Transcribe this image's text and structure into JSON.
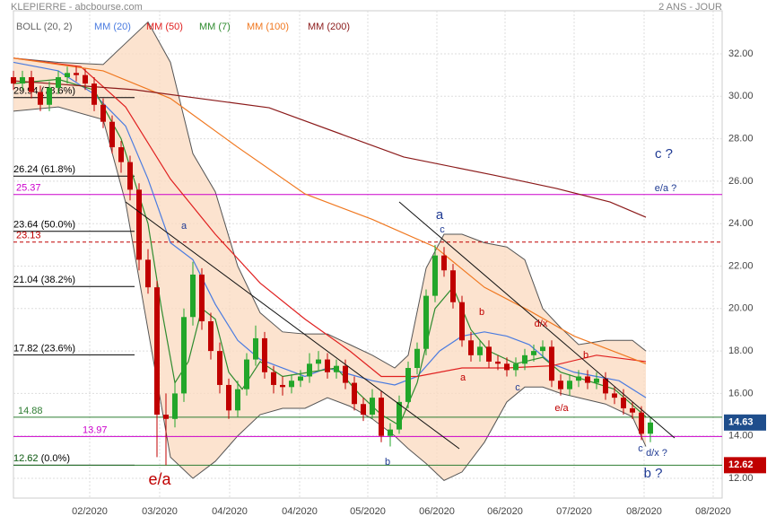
{
  "chart_data": {
    "type": "candlestick",
    "title": "KLEPIERRE - abcbourse.com",
    "subtitle": "2 ANS - JOUR",
    "up_color": "#22a62a",
    "down_color": "#c00000",
    "grid": true,
    "xlim": [
      0,
      158
    ],
    "ylim": [
      11.07,
      34.03
    ],
    "xticks": [
      {
        "value": 17,
        "label": "02/2020"
      },
      {
        "value": 32.6,
        "label": "03/2020"
      },
      {
        "value": 48.2,
        "label": "04/2020"
      },
      {
        "value": 63.8,
        "label": "04/2020"
      },
      {
        "value": 79,
        "label": "05/2020"
      },
      {
        "value": 94.4,
        "label": "06/2020"
      },
      {
        "value": 109.6,
        "label": "06/2020"
      },
      {
        "value": 125,
        "label": "07/2020"
      },
      {
        "value": 140.6,
        "label": "08/2020"
      },
      {
        "value": 156,
        "label": "08/2020"
      }
    ],
    "yticks": [
      {
        "value": 12,
        "label": "12.00"
      },
      {
        "value": 14,
        "label": "14.00"
      },
      {
        "value": 16,
        "label": "16.00"
      },
      {
        "value": 18,
        "label": "18.00"
      },
      {
        "value": 20,
        "label": "20.00"
      },
      {
        "value": 22,
        "label": "22.00"
      },
      {
        "value": 24,
        "label": "24.00"
      },
      {
        "value": 26,
        "label": "26.00"
      },
      {
        "value": 28,
        "label": "28.00"
      },
      {
        "value": 30,
        "label": "30.00"
      },
      {
        "value": 32,
        "label": "32.00"
      }
    ],
    "x": [
      0,
      2,
      4,
      6,
      8,
      10,
      12,
      14,
      16,
      18,
      20,
      22,
      24,
      26,
      28,
      30,
      32,
      34,
      36,
      38,
      40,
      42,
      44,
      46,
      48,
      50,
      52,
      54,
      56,
      58,
      60,
      62,
      64,
      66,
      68,
      70,
      72,
      74,
      76,
      78,
      80,
      82,
      84,
      86,
      88,
      90,
      92,
      94,
      96,
      98,
      100,
      102,
      104,
      106,
      108,
      110,
      112,
      114,
      116,
      118,
      120,
      122,
      124,
      126,
      128,
      130,
      132,
      134,
      136,
      138,
      140,
      142
    ],
    "open": [
      30.9,
      30.6,
      30.9,
      30.2,
      29.6,
      30.4,
      30.9,
      31.1,
      31.0,
      30.6,
      29.6,
      28.8,
      27.6,
      26.9,
      25.6,
      22.3,
      21.0,
      15.0,
      14.8,
      16.0,
      19.6,
      21.6,
      19.4,
      18.0,
      16.4,
      15.2,
      16.2,
      17.6,
      18.6,
      17.0,
      16.4,
      16.3,
      16.6,
      16.8,
      17.4,
      17.6,
      17.0,
      17.3,
      16.5,
      15.5,
      15.0,
      15.8,
      14.0,
      14.3,
      15.6,
      17.2,
      18.1,
      20.6,
      22.5,
      21.8,
      20.3,
      18.5,
      17.8,
      18.2,
      17.5,
      17.4,
      17.1,
      17.4,
      17.8,
      18.0,
      18.2,
      16.6,
      16.2,
      16.6,
      16.8,
      16.5,
      16.7,
      16.0,
      15.8,
      15.3,
      15.1,
      14.1
    ],
    "high": [
      31.2,
      31.2,
      31.2,
      30.5,
      30.7,
      31.2,
      31.4,
      31.4,
      31.3,
      30.9,
      29.9,
      29.1,
      27.9,
      27.2,
      25.9,
      22.8,
      21.3,
      16.0,
      16.5,
      20.0,
      22.2,
      21.9,
      19.8,
      18.4,
      16.7,
      16.6,
      17.9,
      19.2,
      18.9,
      17.3,
      16.8,
      16.9,
      17.1,
      17.9,
      18.0,
      17.9,
      17.6,
      17.6,
      16.8,
      15.8,
      16.2,
      16.1,
      14.6,
      15.9,
      17.5,
      18.4,
      20.9,
      23.0,
      22.9,
      22.1,
      20.6,
      18.9,
      18.5,
      18.5,
      17.8,
      17.7,
      17.7,
      18.1,
      18.3,
      18.5,
      18.5,
      16.9,
      16.9,
      17.1,
      17.1,
      17.0,
      17.0,
      16.3,
      16.2,
      15.6,
      15.4,
      14.9
    ],
    "low": [
      30.3,
      30.3,
      29.9,
      29.3,
      29.3,
      30.1,
      30.6,
      30.7,
      30.3,
      29.3,
      28.5,
      27.3,
      26.4,
      25.1,
      21.8,
      20.7,
      13.0,
      12.62,
      14.4,
      15.6,
      19.2,
      19.0,
      17.6,
      16.0,
      14.8,
      14.9,
      15.9,
      17.3,
      16.7,
      16.0,
      15.9,
      16.0,
      16.3,
      16.5,
      17.1,
      16.7,
      16.7,
      16.2,
      15.2,
      14.7,
      14.8,
      13.7,
      13.5,
      14.1,
      15.3,
      16.9,
      17.8,
      20.3,
      21.5,
      20.0,
      18.2,
      17.5,
      17.5,
      17.2,
      17.1,
      16.8,
      16.8,
      17.1,
      17.5,
      17.7,
      16.3,
      15.9,
      15.9,
      16.3,
      16.2,
      16.2,
      15.7,
      15.5,
      15.0,
      14.8,
      13.8,
      13.7
    ],
    "close": [
      30.6,
      30.9,
      30.2,
      29.6,
      30.4,
      30.9,
      31.1,
      31.0,
      30.6,
      29.6,
      28.8,
      27.6,
      26.9,
      25.6,
      22.3,
      21.0,
      15.0,
      14.8,
      16.0,
      19.6,
      21.6,
      19.4,
      18.0,
      16.4,
      15.2,
      16.2,
      17.6,
      18.6,
      17.0,
      16.4,
      16.3,
      16.6,
      16.8,
      17.4,
      17.6,
      17.0,
      17.3,
      16.5,
      15.5,
      15.0,
      15.8,
      14.0,
      14.3,
      15.6,
      17.2,
      18.1,
      20.6,
      22.5,
      21.8,
      20.3,
      18.5,
      17.8,
      18.2,
      17.5,
      17.4,
      17.1,
      17.4,
      17.8,
      18.0,
      18.2,
      16.6,
      16.2,
      16.6,
      16.8,
      16.5,
      16.7,
      16.0,
      15.8,
      15.3,
      15.1,
      14.1,
      14.63
    ],
    "bands": {
      "name": "BOLL (20, 2)",
      "color": "#555555",
      "fill": "#fbd9bf",
      "x": [
        0,
        10,
        20,
        25,
        30,
        35,
        40,
        45,
        50,
        55,
        60,
        65,
        70,
        75,
        80,
        85,
        88,
        92,
        96,
        100,
        105,
        110,
        114,
        118,
        122,
        126,
        132,
        138,
        141
      ],
      "upper": [
        31.8,
        31.6,
        31.5,
        32.5,
        33.5,
        31.6,
        27.3,
        25.5,
        22.0,
        19.8,
        18.9,
        18.8,
        18.8,
        18.3,
        17.8,
        17.2,
        17.8,
        21.9,
        23.5,
        23.5,
        23.1,
        22.9,
        22.3,
        20.0,
        19.1,
        18.3,
        18.5,
        18.5,
        18.0
      ],
      "lower": [
        29.3,
        29.5,
        28.9,
        25.0,
        19.0,
        13.0,
        12.0,
        12.8,
        14.0,
        15.0,
        15.3,
        15.3,
        15.8,
        15.4,
        14.8,
        14.0,
        13.4,
        12.7,
        11.9,
        12.3,
        13.7,
        15.6,
        16.3,
        16.3,
        16.0,
        15.8,
        15.5,
        14.9,
        13.5
      ]
    },
    "series": [
      {
        "name": "MM (20)",
        "color": "#4a7be0",
        "x": [
          0,
          10,
          18,
          25,
          30,
          35,
          40,
          45,
          50,
          55,
          60,
          65,
          70,
          75,
          80,
          85,
          90,
          95,
          100,
          105,
          110,
          115,
          120,
          125,
          130,
          135,
          141
        ],
        "values": [
          31.6,
          31.2,
          30.1,
          28.6,
          26.1,
          23.1,
          22.3,
          20.2,
          18.5,
          17.6,
          17.2,
          16.8,
          17.2,
          16.9,
          16.6,
          16.4,
          16.8,
          18.0,
          18.7,
          18.9,
          18.7,
          18.3,
          17.4,
          17.0,
          16.8,
          16.6,
          15.8
        ]
      },
      {
        "name": "MM (50)",
        "color": "#e02020",
        "x": [
          0,
          15,
          25,
          35,
          45,
          55,
          65,
          75,
          82,
          90,
          100,
          110,
          120,
          130,
          141
        ],
        "values": [
          31.8,
          31.4,
          29.5,
          26.1,
          23.5,
          21.2,
          19.5,
          18.0,
          16.8,
          16.8,
          17.2,
          17.2,
          17.3,
          17.8,
          17.5
        ]
      },
      {
        "name": "MM (7)",
        "color": "#2e8b2e",
        "x": [
          0,
          10,
          18,
          24,
          30,
          33,
          36,
          39,
          42,
          45,
          48,
          51,
          55,
          60,
          66,
          72,
          77,
          82,
          86,
          90,
          94,
          98,
          102,
          106,
          112,
          118,
          122,
          128,
          134,
          141
        ],
        "values": [
          30.6,
          30.8,
          30.3,
          28.0,
          24.0,
          20.0,
          16.5,
          17.5,
          20.0,
          19.5,
          17.0,
          16.2,
          17.5,
          16.8,
          17.0,
          17.2,
          16.0,
          15.0,
          14.5,
          16.5,
          20.0,
          21.0,
          19.0,
          18.0,
          17.4,
          17.7,
          17.0,
          16.6,
          16.2,
          14.9
        ]
      },
      {
        "name": "MM (100)",
        "color": "#f07820",
        "x": [
          0,
          20,
          35,
          50,
          65,
          80,
          94,
          105,
          115,
          125,
          141
        ],
        "values": [
          31.8,
          31.2,
          29.9,
          27.6,
          25.4,
          24.2,
          22.9,
          21.0,
          19.9,
          18.7,
          17.4
        ]
      },
      {
        "name": "MM (200)",
        "color": "#8b1a1a",
        "x": [
          0,
          27,
          57,
          87,
          107,
          121,
          133,
          141
        ],
        "values": [
          30.73,
          30.31,
          29.46,
          27.14,
          26.29,
          25.66,
          25.02,
          24.3
        ]
      }
    ],
    "levels": [
      {
        "value": 29.94,
        "label": "29.94 (78.6%)",
        "color": "#000000",
        "span": "short"
      },
      {
        "value": 26.24,
        "label": "26.24 (61.8%)",
        "color": "#000000",
        "span": "short"
      },
      {
        "value": 25.37,
        "label": "25.37",
        "color": "#cc00cc",
        "span": "full"
      },
      {
        "value": 23.64,
        "label": "23.64 (50.0%)",
        "color": "#000000",
        "span": "short"
      },
      {
        "value": 23.13,
        "label": "23.13",
        "color": "#c00000",
        "span": "dashed"
      },
      {
        "value": 21.04,
        "label": "21.04 (38.2%)",
        "color": "#000000",
        "span": "short"
      },
      {
        "value": 17.82,
        "label": "17.82 (23.6%)",
        "color": "#000000",
        "span": "short"
      },
      {
        "value": 14.88,
        "label": "14.88",
        "color": "#2e7d32",
        "span": "full"
      },
      {
        "value": 13.97,
        "label": "13.97",
        "color": "#cc00cc",
        "span": "full"
      },
      {
        "value": 12.62,
        "label": "12.62 (0.0%)",
        "color": "#000000",
        "span": "short"
      },
      {
        "value": 12.62,
        "label": "12.62",
        "color": "#2e7d32",
        "span": "full"
      }
    ],
    "price_tags": [
      {
        "value": 14.63,
        "color": "#1f4e8c"
      },
      {
        "value": 12.62,
        "color": "#c00000"
      }
    ],
    "annotations": [
      {
        "text": "e/a",
        "color": "#c00000"
      },
      {
        "text": "a",
        "color": "#1f3a93"
      },
      {
        "text": "b",
        "color": "#1f3a93"
      },
      {
        "text": "a",
        "color": "#1f3a93"
      },
      {
        "text": "c",
        "color": "#1f3a93"
      },
      {
        "text": "b",
        "color": "#c00000"
      },
      {
        "text": "a",
        "color": "#c00000"
      },
      {
        "text": "c",
        "color": "#1f3a93"
      },
      {
        "text": "d/x",
        "color": "#c00000"
      },
      {
        "text": "e/a",
        "color": "#c00000"
      },
      {
        "text": "b",
        "color": "#c00000"
      },
      {
        "text": "c",
        "color": "#1f3a93"
      },
      {
        "text": "d/x ?",
        "color": "#1f3a93"
      },
      {
        "text": "b ?",
        "color": "#1f3a93"
      },
      {
        "text": "c ?",
        "color": "#1f3a93"
      },
      {
        "text": "e/a ?",
        "color": "#1f3a93"
      }
    ]
  }
}
